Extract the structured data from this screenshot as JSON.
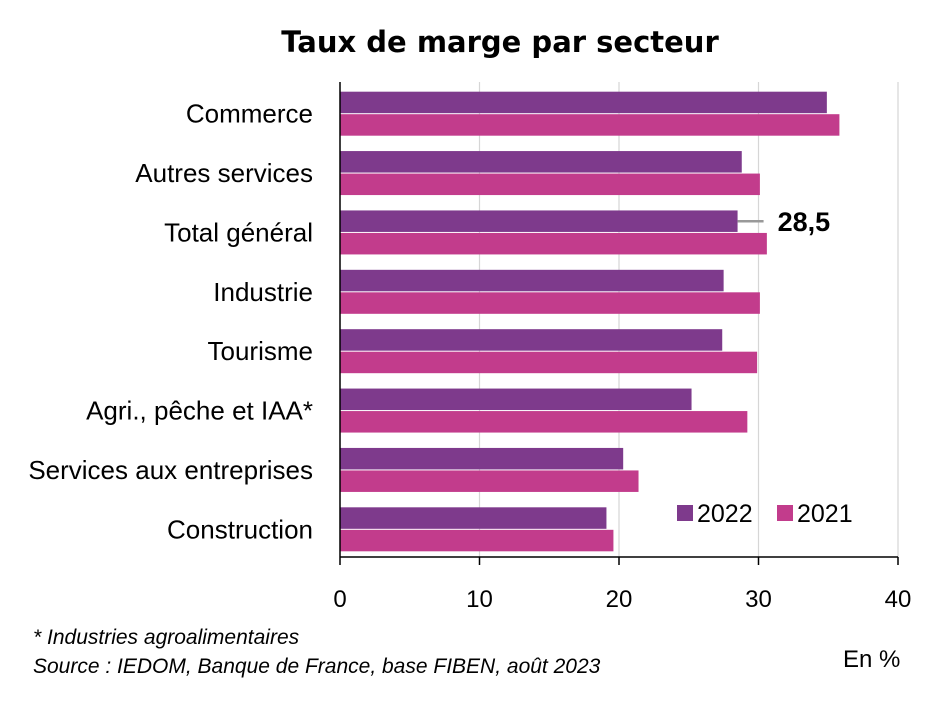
{
  "chart_data": {
    "type": "bar",
    "orientation": "horizontal",
    "title": "Taux de marge par secteur",
    "categories": [
      "Commerce",
      "Autres services",
      "Total général",
      "Industrie",
      "Tourisme",
      "Agri., pêche et IAA*",
      "Services aux entreprises",
      "Construction"
    ],
    "series": [
      {
        "name": "2022",
        "color": "#7E3A8C",
        "values": [
          34.9,
          28.8,
          28.5,
          27.5,
          27.4,
          25.2,
          20.3,
          19.1
        ]
      },
      {
        "name": "2021",
        "color": "#C23C8C",
        "values": [
          35.8,
          30.1,
          30.6,
          30.1,
          29.9,
          29.2,
          21.4,
          19.6
        ]
      }
    ],
    "xlim": [
      0,
      40
    ],
    "xticks": [
      "0",
      "10",
      "20",
      "30",
      "40"
    ],
    "xlabel": "En %",
    "grid": true,
    "legend_position": "bottom-right",
    "annotation": {
      "text": "28,5",
      "category": "Total général",
      "series": "2022"
    }
  },
  "footnote": "* Industries agroalimentaires",
  "source": "Source : IEDOM, Banque de France, base FIBEN, août 2023"
}
